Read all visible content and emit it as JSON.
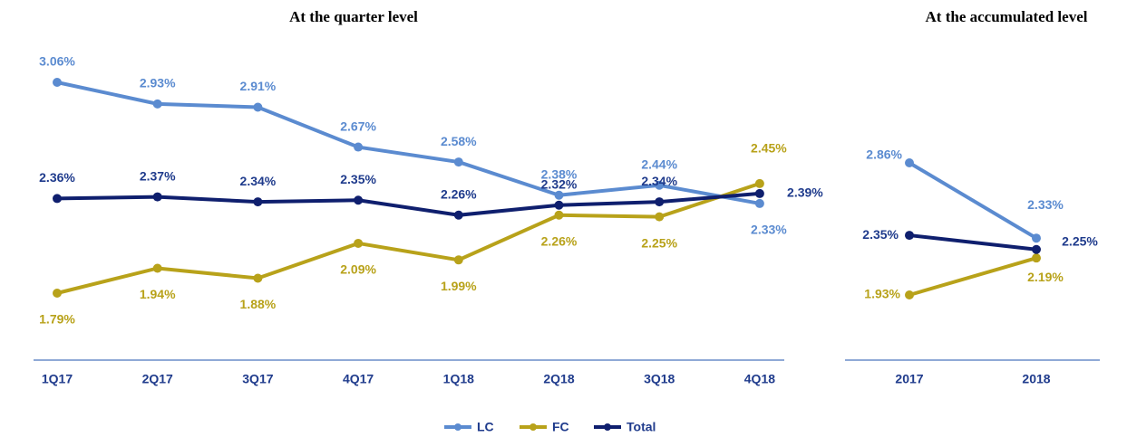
{
  "chart_data": [
    {
      "type": "line",
      "title": "At the quarter level",
      "categories": [
        "1Q17",
        "2Q17",
        "3Q17",
        "4Q17",
        "1Q18",
        "2Q18",
        "3Q18",
        "4Q18"
      ],
      "series": [
        {
          "name": "LC",
          "color": "#5b8bd0",
          "values": [
            3.06,
            2.93,
            2.91,
            2.67,
            2.58,
            2.38,
            2.44,
            2.33
          ],
          "value_labels": [
            "3.06%",
            "2.93%",
            "2.91%",
            "2.67%",
            "2.58%",
            "2.38%",
            "2.44%",
            "2.33%"
          ]
        },
        {
          "name": "FC",
          "color": "#b8a21a",
          "values": [
            1.79,
            1.94,
            1.88,
            2.09,
            1.99,
            2.26,
            2.25,
            2.45
          ],
          "value_labels": [
            "1.79%",
            "1.94%",
            "1.88%",
            "2.09%",
            "1.99%",
            "2.26%",
            "2.25%",
            "2.45%"
          ]
        },
        {
          "name": "Total",
          "color": "#0f1f6e",
          "values": [
            2.36,
            2.37,
            2.34,
            2.35,
            2.26,
            2.32,
            2.34,
            2.39
          ],
          "value_labels": [
            "2.36%",
            "2.37%",
            "2.34%",
            "2.35%",
            "2.26%",
            "2.32%",
            "2.34%",
            "2.39%"
          ]
        }
      ]
    },
    {
      "type": "line",
      "title": "At the accumulated level",
      "categories": [
        "2017",
        "2018"
      ],
      "series": [
        {
          "name": "LC",
          "color": "#5b8bd0",
          "values": [
            2.86,
            2.33
          ],
          "value_labels": [
            "2.86%",
            "2.33%"
          ]
        },
        {
          "name": "FC",
          "color": "#b8a21a",
          "values": [
            1.93,
            2.19
          ],
          "value_labels": [
            "1.93%",
            "2.19%"
          ]
        },
        {
          "name": "Total",
          "color": "#0f1f6e",
          "values": [
            2.35,
            2.25
          ],
          "value_labels": [
            "2.35%",
            "2.25%"
          ]
        }
      ]
    }
  ]
}
